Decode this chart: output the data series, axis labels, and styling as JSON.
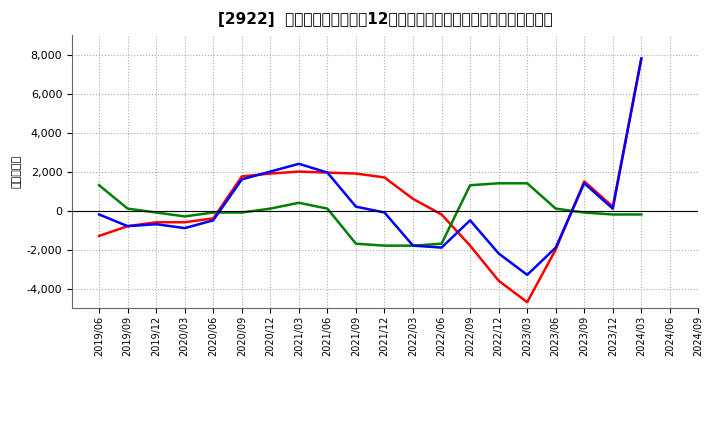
{
  "title": "[2922]  キャッシュフローの12か月移動合計の対前年同期増減額の推移",
  "ylabel": "（百万円）",
  "background_color": "#ffffff",
  "plot_bg_color": "#ffffff",
  "grid_color": "#aaaaaa",
  "ylim": [
    -5000,
    9000
  ],
  "yticks": [
    -4000,
    -2000,
    0,
    2000,
    4000,
    6000,
    8000
  ],
  "dates": [
    "2019/06",
    "2019/09",
    "2019/12",
    "2020/03",
    "2020/06",
    "2020/09",
    "2020/12",
    "2021/03",
    "2021/06",
    "2021/09",
    "2021/12",
    "2022/03",
    "2022/06",
    "2022/09",
    "2022/12",
    "2023/03",
    "2023/06",
    "2023/09",
    "2023/12",
    "2024/03",
    "2024/06",
    "2024/09"
  ],
  "eigyo_cf": [
    -1300,
    -800,
    -600,
    -600,
    -400,
    1750,
    1900,
    2000,
    1950,
    1900,
    1700,
    600,
    -200,
    -1800,
    -3600,
    -4700,
    -2000,
    1500,
    200,
    7800,
    null,
    null
  ],
  "toshi_cf": [
    1300,
    100,
    -100,
    -300,
    -100,
    -100,
    100,
    400,
    100,
    -1700,
    -1800,
    -1800,
    -1700,
    1300,
    1400,
    1400,
    100,
    -100,
    -200,
    -200,
    null,
    null
  ],
  "free_cf": [
    -200,
    -800,
    -700,
    -900,
    -500,
    1600,
    2000,
    2400,
    1950,
    200,
    -100,
    -1800,
    -1900,
    -500,
    -2200,
    -3300,
    -1900,
    1400,
    100,
    7800,
    null,
    null
  ],
  "eigyo_color": "#ff0000",
  "toshi_color": "#008000",
  "free_color": "#0000ff",
  "linewidth": 1.8
}
